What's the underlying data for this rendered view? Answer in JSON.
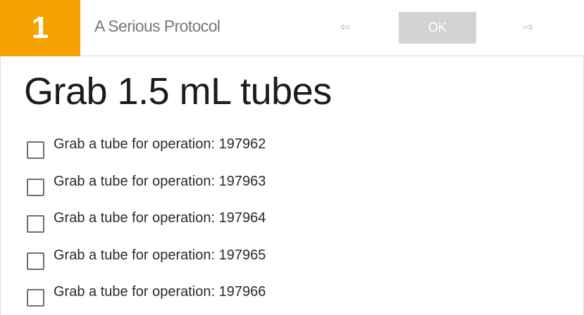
{
  "header": {
    "step_number": "1",
    "protocol_title": "A Serious Protocol",
    "prev_arrow": "⇦",
    "ok_label": "OK",
    "next_arrow": "⇨"
  },
  "step": {
    "title": "Grab 1.5 mL tubes",
    "items": [
      {
        "label": "Grab a tube for operation: 197962",
        "checked": false
      },
      {
        "label": "Grab a tube for operation: 197963",
        "checked": false
      },
      {
        "label": "Grab a tube for operation: 197964",
        "checked": false
      },
      {
        "label": "Grab a tube for operation: 197965",
        "checked": false
      },
      {
        "label": "Grab a tube for operation: 197966",
        "checked": false
      }
    ]
  },
  "colors": {
    "step_badge": "#f5a200",
    "ok_button_disabled": "#d3d3d3"
  }
}
